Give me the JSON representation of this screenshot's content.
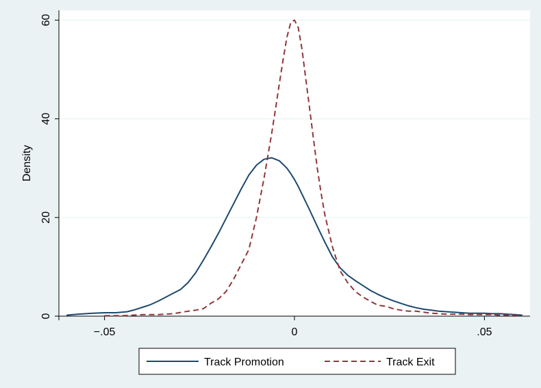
{
  "chart_data": {
    "type": "line",
    "xlabel": "",
    "ylabel": "Density",
    "xlim": [
      -0.062,
      0.062
    ],
    "ylim": [
      0,
      62
    ],
    "xticks": [
      {
        "value": -0.05,
        "label": "−.05"
      },
      {
        "value": 0,
        "label": "0"
      },
      {
        "value": 0.05,
        "label": ".05"
      }
    ],
    "yticks": [
      {
        "value": 0,
        "label": "0"
      },
      {
        "value": 20,
        "label": "20"
      },
      {
        "value": 40,
        "label": "40"
      },
      {
        "value": 60,
        "label": "60"
      }
    ],
    "grid": true,
    "legend_position": "bottom",
    "series": [
      {
        "name": "Track Promotion",
        "color": "#1a476f",
        "dash": "solid",
        "x": [
          -0.06,
          -0.057,
          -0.053,
          -0.05,
          -0.047,
          -0.044,
          -0.042,
          -0.04,
          -0.038,
          -0.036,
          -0.034,
          -0.032,
          -0.03,
          -0.028,
          -0.026,
          -0.024,
          -0.022,
          -0.02,
          -0.018,
          -0.016,
          -0.014,
          -0.012,
          -0.01,
          -0.008,
          -0.006,
          -0.004,
          -0.002,
          -0.001,
          0,
          0.001,
          0.002,
          0.004,
          0.006,
          0.008,
          0.01,
          0.012,
          0.014,
          0.016,
          0.018,
          0.02,
          0.022,
          0.024,
          0.026,
          0.028,
          0.03,
          0.032,
          0.034,
          0.036,
          0.038,
          0.04,
          0.042,
          0.044,
          0.046,
          0.048,
          0.05,
          0.052,
          0.054,
          0.056,
          0.058,
          0.06
        ],
        "y": [
          0.2,
          0.4,
          0.6,
          0.7,
          0.7,
          0.9,
          1.3,
          1.8,
          2.3,
          3.0,
          3.8,
          4.6,
          5.4,
          6.8,
          8.8,
          11.3,
          14.0,
          16.8,
          19.8,
          22.8,
          25.8,
          28.6,
          30.6,
          31.8,
          32.1,
          31.5,
          30.0,
          28.9,
          27.7,
          26.3,
          24.7,
          21.5,
          18.2,
          15.0,
          12.0,
          9.8,
          8.3,
          7.2,
          6.2,
          5.2,
          4.4,
          3.7,
          3.1,
          2.6,
          2.1,
          1.7,
          1.4,
          1.2,
          1.0,
          0.9,
          0.8,
          0.7,
          0.6,
          0.6,
          0.6,
          0.5,
          0.5,
          0.4,
          0.3,
          0.2
        ]
      },
      {
        "name": "Track Exit",
        "color": "#90353b",
        "dash": "dashed",
        "x": [
          -0.05,
          -0.045,
          -0.04,
          -0.036,
          -0.032,
          -0.028,
          -0.026,
          -0.024,
          -0.022,
          -0.02,
          -0.018,
          -0.016,
          -0.014,
          -0.012,
          -0.01,
          -0.008,
          -0.006,
          -0.005,
          -0.004,
          -0.003,
          -0.002,
          -0.001,
          0,
          0.001,
          0.002,
          0.003,
          0.004,
          0.005,
          0.006,
          0.007,
          0.008,
          0.01,
          0.012,
          0.014,
          0.016,
          0.018,
          0.02,
          0.022,
          0.024,
          0.026,
          0.028,
          0.03,
          0.032,
          0.034,
          0.036,
          0.038,
          0.04,
          0.042,
          0.044,
          0.046,
          0.048,
          0.05,
          0.052,
          0.054,
          0.056,
          0.058,
          0.06
        ],
        "y": [
          0.1,
          0.1,
          0.3,
          0.3,
          0.5,
          1.0,
          1.2,
          1.5,
          2.6,
          3.5,
          5.0,
          7.5,
          10.5,
          13.5,
          20.0,
          28.0,
          37.0,
          42.0,
          47.0,
          52.0,
          56.5,
          59.5,
          60.0,
          58.5,
          54.0,
          48.0,
          42.0,
          36.0,
          30.0,
          25.0,
          20.5,
          14.0,
          9.2,
          6.8,
          5.0,
          3.9,
          3.0,
          2.2,
          2.0,
          1.5,
          1.2,
          1.0,
          1.0,
          0.8,
          0.6,
          0.5,
          0.4,
          0.4,
          0.4,
          0.3,
          0.3,
          0.3,
          0.3,
          0.2,
          0.2,
          0.2,
          0.1
        ]
      }
    ]
  }
}
